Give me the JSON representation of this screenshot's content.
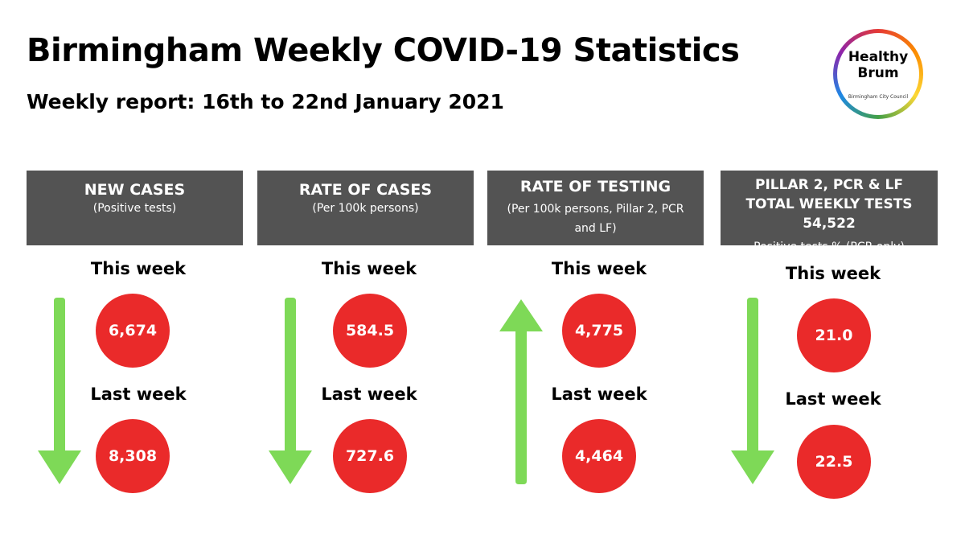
{
  "header": {
    "title": "Birmingham Weekly COVID-19 Statistics",
    "subtitle": "Weekly report: 16th to 22nd January 2021"
  },
  "logo": {
    "line1": "Healthy",
    "line2": "Brum",
    "council": "Birmingham City Council"
  },
  "labels": {
    "this_week": "This week",
    "last_week": "Last week"
  },
  "colors": {
    "panel": "#535353",
    "circle": "#ea2a2a",
    "arrow": "#7ed957"
  },
  "panels": [
    {
      "title": "NEW CASES",
      "sub": "(Positive tests)",
      "this_week": "6,674",
      "last_week": "8,308",
      "trend": "down"
    },
    {
      "title": "RATE OF CASES",
      "sub": "(Per 100k persons)",
      "this_week": "584.5",
      "last_week": "727.6",
      "trend": "down"
    },
    {
      "title": "RATE OF TESTING",
      "sub": "(Per 100k persons, Pillar 2, PCR and LF)",
      "this_week": "4,775",
      "last_week": "4,464",
      "trend": "up"
    },
    {
      "title": "PILLAR 2, PCR & LF TOTAL WEEKLY TESTS  54,522",
      "sub": "Positive tests % (PCR only)",
      "this_week": "21.0",
      "last_week": "22.5",
      "trend": "down"
    }
  ]
}
